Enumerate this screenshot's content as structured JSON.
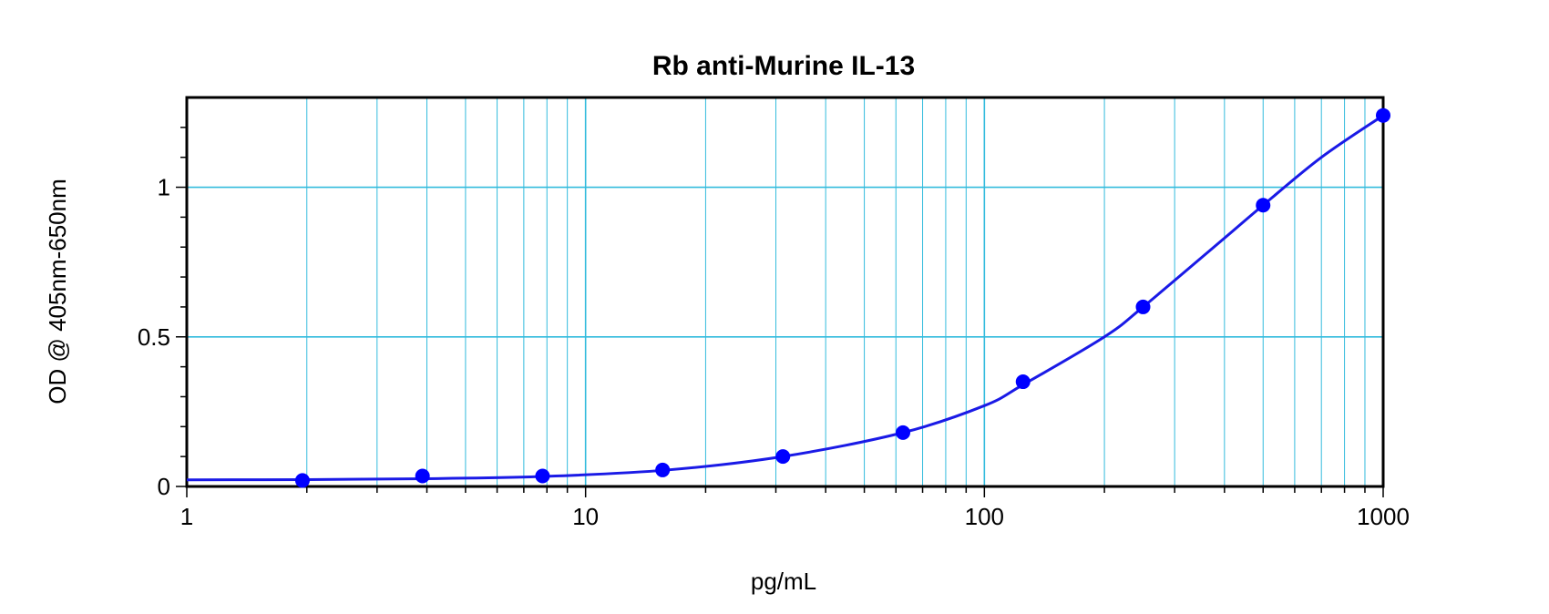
{
  "chart_data": {
    "type": "scatter",
    "title": "Rb anti-Murine IL-13",
    "xlabel": "pg/mL",
    "ylabel": "OD @ 405nm-650nm",
    "xscale": "log",
    "xlim": [
      1,
      1000
    ],
    "ylim": [
      0,
      1.3
    ],
    "x_ticks": [
      "1",
      "10",
      "100",
      "1000"
    ],
    "y_ticks": [
      "0",
      "0.5",
      "1"
    ],
    "grid": true,
    "colors": {
      "points": "#0000ff",
      "curve": "#1a1ae6",
      "grid": "#33bbdd",
      "axes": "#000000"
    },
    "series": [
      {
        "x": [
          1.95,
          3.9,
          7.8,
          15.6,
          31.25,
          62.5,
          125,
          250,
          500,
          1000
        ],
        "y": [
          0.02,
          0.035,
          0.035,
          0.055,
          0.1,
          0.18,
          0.35,
          0.6,
          0.94,
          1.24
        ]
      }
    ],
    "curve": {
      "x": [
        1,
        2,
        4,
        8,
        16,
        31.25,
        62.5,
        100,
        125,
        200,
        250,
        400,
        500,
        700,
        1000
      ],
      "y": [
        0.022,
        0.023,
        0.026,
        0.034,
        0.055,
        0.1,
        0.18,
        0.27,
        0.34,
        0.5,
        0.6,
        0.83,
        0.94,
        1.1,
        1.24
      ]
    }
  }
}
